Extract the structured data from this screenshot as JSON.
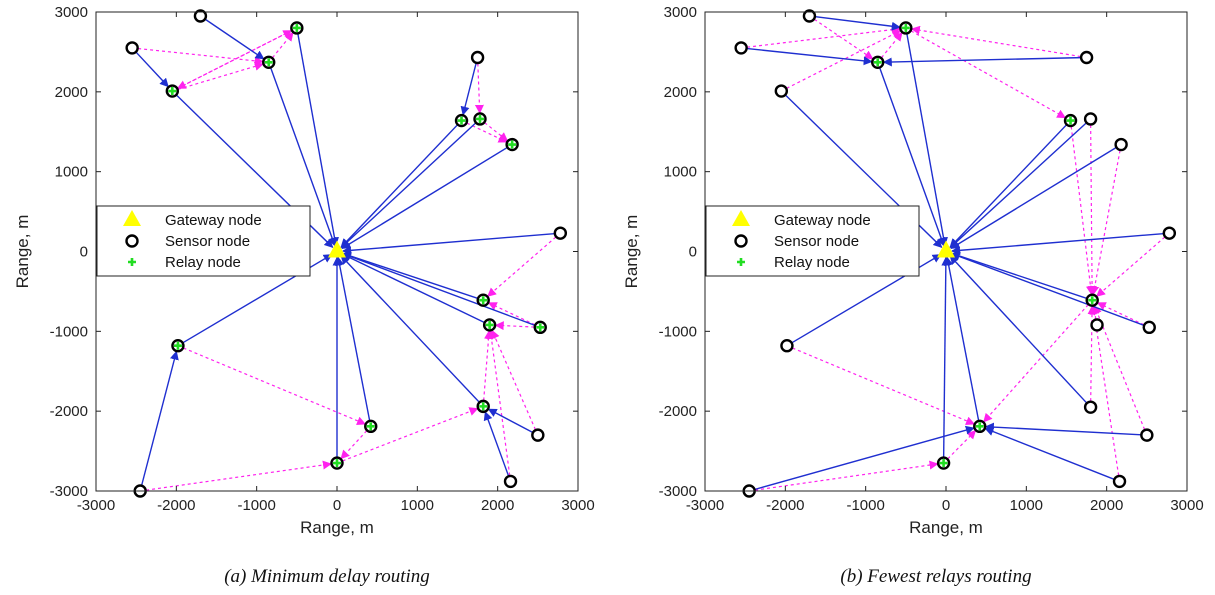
{
  "chart_data": [
    {
      "type": "scatter",
      "caption": "(a) Minimum delay routing",
      "xlabel": "Range, m",
      "ylabel": "Range, m",
      "xlim": [
        -3000,
        3000
      ],
      "ylim": [
        -3000,
        3000
      ],
      "xticks": [
        -3000,
        -2000,
        -1000,
        0,
        1000,
        2000,
        3000
      ],
      "yticks": [
        -3000,
        -2000,
        -1000,
        0,
        1000,
        2000,
        3000
      ],
      "grid": false,
      "legend": {
        "placement": "center-left",
        "entries": [
          {
            "label": "Gateway node",
            "marker": "triangle",
            "color": "#ffff00"
          },
          {
            "label": "Sensor node",
            "marker": "circle",
            "color": "#000000"
          },
          {
            "label": "Relay node",
            "marker": "plus",
            "color": "#22dd22"
          }
        ]
      },
      "gateway": [
        0,
        0
      ],
      "sensors": [
        [
          -1700,
          2950
        ],
        [
          -500,
          2800
        ],
        [
          -2550,
          2550
        ],
        [
          -850,
          2370
        ],
        [
          -2050,
          2010
        ],
        [
          1750,
          2430
        ],
        [
          1550,
          1640
        ],
        [
          1780,
          1660
        ],
        [
          2180,
          1340
        ],
        [
          2780,
          230
        ],
        [
          1820,
          -610
        ],
        [
          1900,
          -920
        ],
        [
          2530,
          -950
        ],
        [
          -1980,
          -1180
        ],
        [
          1820,
          -1940
        ],
        [
          2500,
          -2300
        ],
        [
          420,
          -2190
        ],
        [
          0,
          -2650
        ],
        [
          2160,
          -2880
        ],
        [
          -2450,
          -3000
        ]
      ],
      "relays": [
        [
          -500,
          2800
        ],
        [
          -850,
          2370
        ],
        [
          -2050,
          2010
        ],
        [
          1550,
          1640
        ],
        [
          1780,
          1660
        ],
        [
          2180,
          1340
        ],
        [
          1820,
          -610
        ],
        [
          1900,
          -920
        ],
        [
          2530,
          -950
        ],
        [
          -1980,
          -1180
        ],
        [
          1820,
          -1940
        ],
        [
          420,
          -2190
        ],
        [
          0,
          -2650
        ]
      ],
      "blue_links": [
        [
          [
            -1700,
            2950
          ],
          [
            -850,
            2370
          ]
        ],
        [
          [
            -2550,
            2550
          ],
          [
            -2050,
            2010
          ]
        ],
        [
          [
            -850,
            2370
          ],
          [
            0,
            0
          ]
        ],
        [
          [
            -500,
            2800
          ],
          [
            0,
            0
          ]
        ],
        [
          [
            -2050,
            2010
          ],
          [
            0,
            0
          ]
        ],
        [
          [
            1750,
            2430
          ],
          [
            1550,
            1640
          ]
        ],
        [
          [
            1550,
            1640
          ],
          [
            0,
            0
          ]
        ],
        [
          [
            1780,
            1660
          ],
          [
            0,
            0
          ]
        ],
        [
          [
            2180,
            1340
          ],
          [
            0,
            0
          ]
        ],
        [
          [
            2780,
            230
          ],
          [
            0,
            0
          ]
        ],
        [
          [
            1820,
            -610
          ],
          [
            0,
            0
          ]
        ],
        [
          [
            1900,
            -920
          ],
          [
            0,
            0
          ]
        ],
        [
          [
            2530,
            -950
          ],
          [
            0,
            0
          ]
        ],
        [
          [
            1820,
            -1940
          ],
          [
            0,
            0
          ]
        ],
        [
          [
            -1980,
            -1180
          ],
          [
            0,
            0
          ]
        ],
        [
          [
            420,
            -2190
          ],
          [
            0,
            0
          ]
        ],
        [
          [
            0,
            -2650
          ],
          [
            0,
            0
          ]
        ],
        [
          [
            -2450,
            -3000
          ],
          [
            -1980,
            -1180
          ]
        ],
        [
          [
            2500,
            -2300
          ],
          [
            1820,
            -1940
          ]
        ],
        [
          [
            2160,
            -2880
          ],
          [
            1820,
            -1940
          ]
        ]
      ],
      "magenta_links": [
        [
          [
            -2550,
            2550
          ],
          [
            -850,
            2370
          ]
        ],
        [
          [
            -2050,
            2010
          ],
          [
            -850,
            2370
          ]
        ],
        [
          [
            -2050,
            2010
          ],
          [
            -500,
            2800
          ]
        ],
        [
          [
            -850,
            2370
          ],
          [
            -500,
            2800
          ]
        ],
        [
          [
            -500,
            2800
          ],
          [
            -2050,
            2010
          ]
        ],
        [
          [
            1750,
            2430
          ],
          [
            1780,
            1660
          ]
        ],
        [
          [
            1780,
            1660
          ],
          [
            2180,
            1340
          ]
        ],
        [
          [
            1550,
            1640
          ],
          [
            2180,
            1340
          ]
        ],
        [
          [
            2780,
            230
          ],
          [
            1820,
            -610
          ]
        ],
        [
          [
            2530,
            -950
          ],
          [
            1820,
            -610
          ]
        ],
        [
          [
            2530,
            -950
          ],
          [
            1900,
            -920
          ]
        ],
        [
          [
            1820,
            -1940
          ],
          [
            1900,
            -920
          ]
        ],
        [
          [
            2500,
            -2300
          ],
          [
            1900,
            -920
          ]
        ],
        [
          [
            2160,
            -2880
          ],
          [
            1900,
            -920
          ]
        ],
        [
          [
            -1980,
            -1180
          ],
          [
            420,
            -2190
          ]
        ],
        [
          [
            420,
            -2190
          ],
          [
            0,
            -2650
          ]
        ],
        [
          [
            -2450,
            -3000
          ],
          [
            0,
            -2650
          ]
        ],
        [
          [
            0,
            -2650
          ],
          [
            1820,
            -1940
          ]
        ]
      ]
    },
    {
      "type": "scatter",
      "caption": "(b) Fewest relays routing",
      "xlabel": "Range, m",
      "ylabel": "Range, m",
      "xlim": [
        -3000,
        3000
      ],
      "ylim": [
        -3000,
        3000
      ],
      "xticks": [
        -3000,
        -2000,
        -1000,
        0,
        1000,
        2000,
        3000
      ],
      "yticks": [
        -3000,
        -2000,
        -1000,
        0,
        1000,
        2000,
        3000
      ],
      "grid": false,
      "legend": {
        "placement": "center-left",
        "entries": [
          {
            "label": "Gateway node",
            "marker": "triangle",
            "color": "#ffff00"
          },
          {
            "label": "Sensor node",
            "marker": "circle",
            "color": "#000000"
          },
          {
            "label": "Relay node",
            "marker": "plus",
            "color": "#22dd22"
          }
        ]
      },
      "gateway": [
        0,
        0
      ],
      "sensors": [
        [
          -1700,
          2950
        ],
        [
          -500,
          2800
        ],
        [
          -2550,
          2550
        ],
        [
          -850,
          2370
        ],
        [
          -2050,
          2010
        ],
        [
          1750,
          2430
        ],
        [
          1550,
          1640
        ],
        [
          1800,
          1660
        ],
        [
          2180,
          1340
        ],
        [
          2780,
          230
        ],
        [
          1820,
          -610
        ],
        [
          1880,
          -920
        ],
        [
          2530,
          -950
        ],
        [
          -1980,
          -1180
        ],
        [
          1800,
          -1950
        ],
        [
          2500,
          -2300
        ],
        [
          420,
          -2190
        ],
        [
          -30,
          -2650
        ],
        [
          2160,
          -2880
        ],
        [
          -2450,
          -3000
        ]
      ],
      "relays": [
        [
          -500,
          2800
        ],
        [
          -850,
          2370
        ],
        [
          1550,
          1640
        ],
        [
          1820,
          -610
        ],
        [
          420,
          -2190
        ],
        [
          -30,
          -2650
        ]
      ],
      "blue_links": [
        [
          [
            -2550,
            2550
          ],
          [
            -850,
            2370
          ]
        ],
        [
          [
            1750,
            2430
          ],
          [
            -850,
            2370
          ]
        ],
        [
          [
            -1700,
            2950
          ],
          [
            -500,
            2800
          ]
        ],
        [
          [
            -850,
            2370
          ],
          [
            0,
            0
          ]
        ],
        [
          [
            -500,
            2800
          ],
          [
            0,
            0
          ]
        ],
        [
          [
            -2050,
            2010
          ],
          [
            0,
            0
          ]
        ],
        [
          [
            1550,
            1640
          ],
          [
            0,
            0
          ]
        ],
        [
          [
            1800,
            1660
          ],
          [
            0,
            0
          ]
        ],
        [
          [
            2180,
            1340
          ],
          [
            0,
            0
          ]
        ],
        [
          [
            2780,
            230
          ],
          [
            0,
            0
          ]
        ],
        [
          [
            1820,
            -610
          ],
          [
            0,
            0
          ]
        ],
        [
          [
            2530,
            -950
          ],
          [
            0,
            0
          ]
        ],
        [
          [
            1800,
            -1950
          ],
          [
            0,
            0
          ]
        ],
        [
          [
            -1980,
            -1180
          ],
          [
            0,
            0
          ]
        ],
        [
          [
            420,
            -2190
          ],
          [
            0,
            0
          ]
        ],
        [
          [
            -30,
            -2650
          ],
          [
            0,
            0
          ]
        ],
        [
          [
            -2450,
            -3000
          ],
          [
            420,
            -2190
          ]
        ],
        [
          [
            2500,
            -2300
          ],
          [
            420,
            -2190
          ]
        ],
        [
          [
            2160,
            -2880
          ],
          [
            420,
            -2190
          ]
        ]
      ],
      "magenta_links": [
        [
          [
            -2550,
            2550
          ],
          [
            -500,
            2800
          ]
        ],
        [
          [
            -850,
            2370
          ],
          [
            -500,
            2800
          ]
        ],
        [
          [
            -2050,
            2010
          ],
          [
            -500,
            2800
          ]
        ],
        [
          [
            1750,
            2430
          ],
          [
            -500,
            2800
          ]
        ],
        [
          [
            -1700,
            2950
          ],
          [
            -850,
            2370
          ]
        ],
        [
          [
            -500,
            2800
          ],
          [
            1550,
            1640
          ]
        ],
        [
          [
            1800,
            1660
          ],
          [
            1820,
            -610
          ]
        ],
        [
          [
            2180,
            1340
          ],
          [
            1820,
            -610
          ]
        ],
        [
          [
            1550,
            1640
          ],
          [
            1820,
            -610
          ]
        ],
        [
          [
            2780,
            230
          ],
          [
            1820,
            -610
          ]
        ],
        [
          [
            1880,
            -920
          ],
          [
            1820,
            -610
          ]
        ],
        [
          [
            2530,
            -950
          ],
          [
            1820,
            -610
          ]
        ],
        [
          [
            2500,
            -2300
          ],
          [
            1820,
            -610
          ]
        ],
        [
          [
            2160,
            -2880
          ],
          [
            1820,
            -610
          ]
        ],
        [
          [
            1800,
            -1950
          ],
          [
            1820,
            -610
          ]
        ],
        [
          [
            -1980,
            -1180
          ],
          [
            420,
            -2190
          ]
        ],
        [
          [
            1820,
            -610
          ],
          [
            420,
            -2190
          ]
        ],
        [
          [
            -30,
            -2650
          ],
          [
            420,
            -2190
          ]
        ],
        [
          [
            -2450,
            -3000
          ],
          [
            -30,
            -2650
          ]
        ]
      ]
    }
  ]
}
